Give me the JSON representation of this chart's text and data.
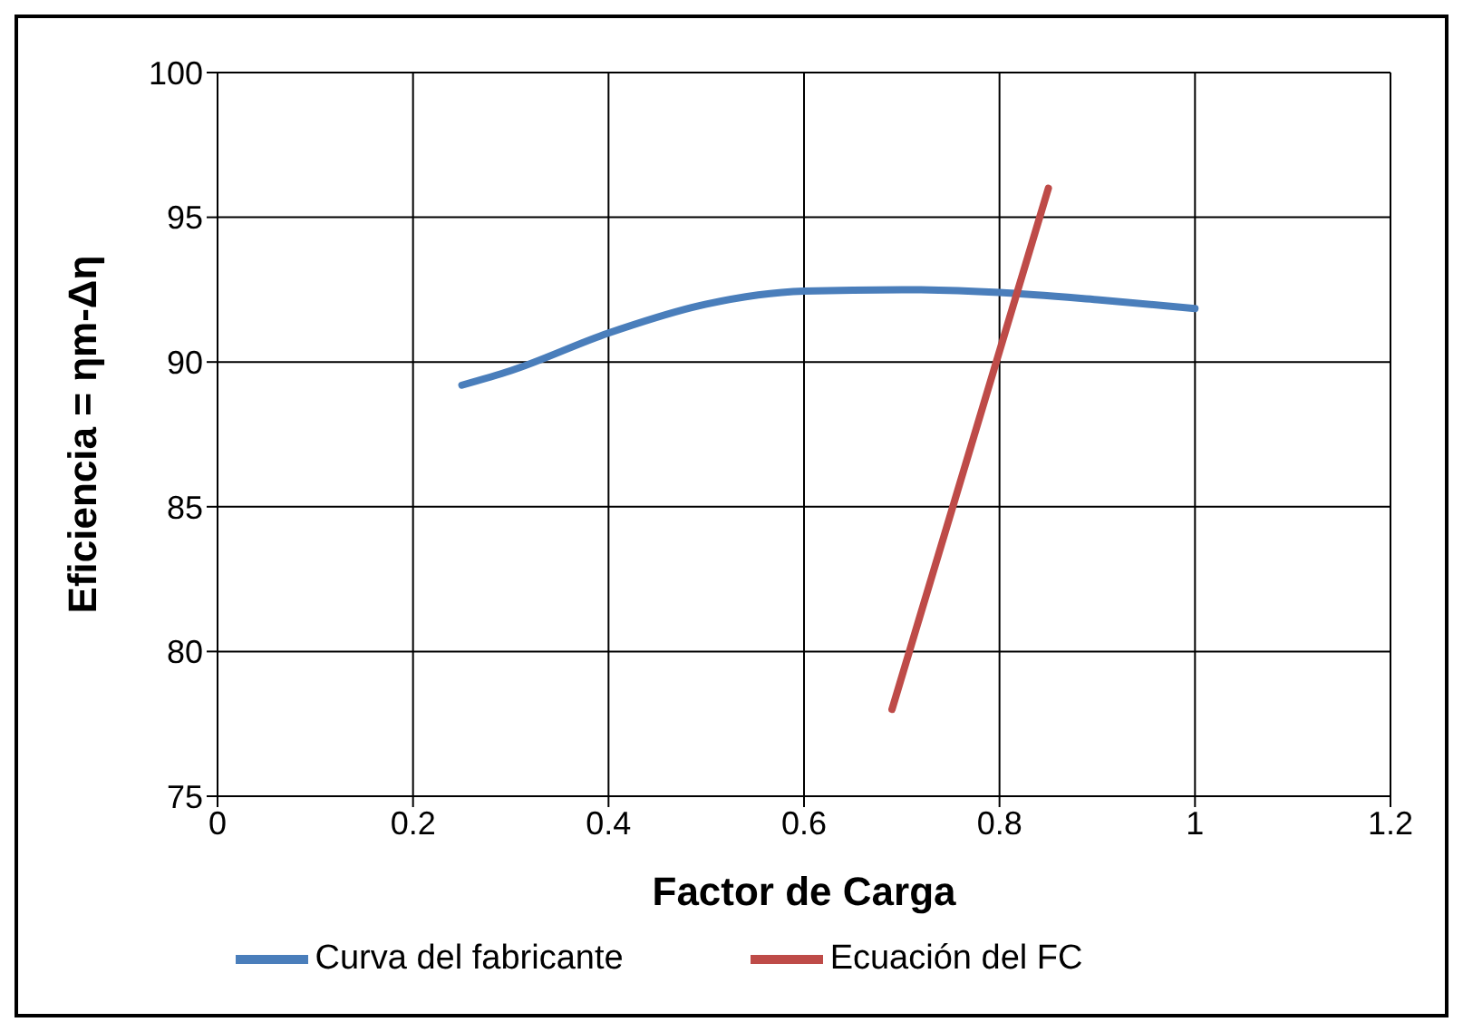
{
  "chart_data": {
    "type": "line",
    "xlabel": "Factor de Carga",
    "ylabel": "Eficiencia = ηm-Δη",
    "xlim": [
      0,
      1.2
    ],
    "xticks": [
      0,
      0.2,
      0.4,
      0.6,
      0.8,
      1,
      1.2
    ],
    "ylim": [
      75,
      100
    ],
    "yticks": [
      75,
      80,
      85,
      90,
      95,
      100
    ],
    "grid": true,
    "legend": "bottom",
    "marker": "none",
    "line_style": "solid",
    "series": [
      {
        "name": "Curva del fabricante",
        "color": "#4a7ebb",
        "x": [
          0.25,
          0.3,
          0.4,
          0.5,
          0.6,
          0.7,
          0.8,
          0.9,
          1
        ],
        "values": [
          89.2,
          89.7,
          91.0,
          92.0,
          92.45,
          92.5,
          92.4,
          92.15,
          91.85
        ]
      },
      {
        "name": "Ecuación del FC",
        "color": "#be4b48",
        "x": [
          0.69,
          0.85
        ],
        "values": [
          78,
          96
        ]
      }
    ]
  }
}
